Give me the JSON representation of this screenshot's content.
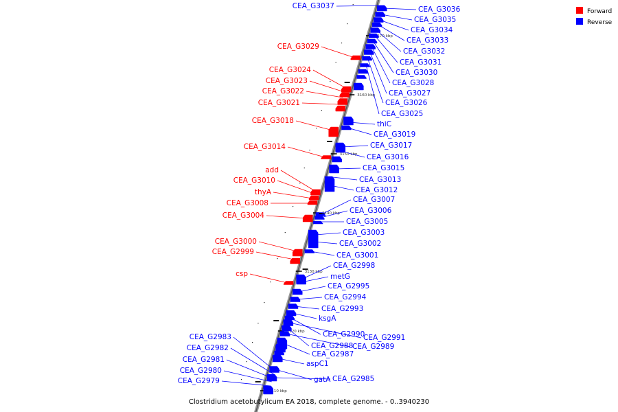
{
  "legend": {
    "forward_label": "Forward",
    "reverse_label": "Reverse",
    "forward_color": "#ff0000",
    "reverse_color": "#0000ff"
  },
  "caption": "Clostridium acetobutylicum EA 2018, complete genome. - 0..3940230",
  "ticks": [
    "3170 kbp",
    "3160 kbp",
    "3150 kbp",
    "3140 kbp",
    "3130 kbp",
    "3120 kbp",
    "3110 kbp"
  ],
  "genes": {
    "forward": [
      "CEA_G3029",
      "CEA_G3024",
      "CEA_G3023",
      "CEA_G3022",
      "CEA_G3021",
      "CEA_G3018",
      "CEA_G3014",
      "add",
      "CEA_G3010",
      "thyA",
      "CEA_G3008",
      "CEA_G3004",
      "CEA_G3000",
      "CEA_G2999",
      "csp"
    ],
    "reverse_left": [
      "CEA_G3037",
      "CEA_G2983",
      "CEA_G2982",
      "CEA_G2981",
      "CEA_G2980",
      "CEA_G2979"
    ],
    "reverse_right": [
      "CEA_G3036",
      "CEA_G3035",
      "CEA_G3034",
      "CEA_G3033",
      "CEA_G3032",
      "CEA_G3031",
      "CEA_G3030",
      "CEA_G3028",
      "CEA_G3027",
      "CEA_G3026",
      "CEA_G3025",
      "thiC",
      "CEA_G3019",
      "CEA_G3017",
      "CEA_G3016",
      "CEA_G3015",
      "CEA_G3013",
      "CEA_G3012",
      "CEA_G3007",
      "CEA_G3006",
      "CEA_G3005",
      "CEA_G3003",
      "CEA_G3002",
      "CEA_G3001",
      "CEA_G2998",
      "metG",
      "CEA_G2995",
      "CEA_G2994",
      "CEA_G2993",
      "ksgA",
      "CEA_G2990",
      "CEA_G2991",
      "CEA_G2988",
      "CEA_G2989",
      "CEA_G2987",
      "aspC1",
      "gatA",
      "CEA_G2985"
    ]
  }
}
